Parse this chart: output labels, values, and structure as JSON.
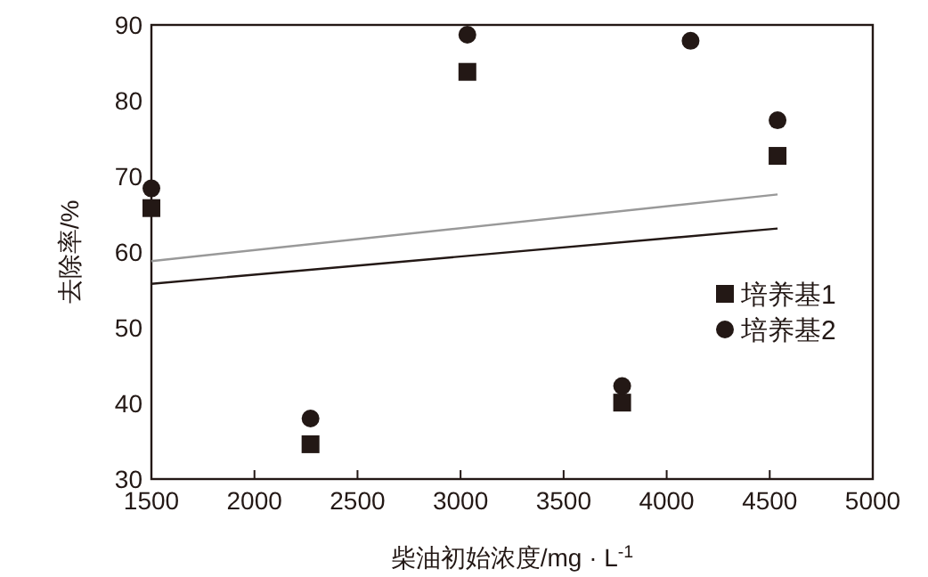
{
  "chart_data": {
    "type": "scatter",
    "xlabel": "柴油初始浓度/mg · L$^{-1}$",
    "ylabel": "去除率/%",
    "xlim": [
      1500,
      5000
    ],
    "xticks": [
      1500,
      2000,
      2500,
      3000,
      3500,
      4000,
      4500,
      5000
    ],
    "ylim": [
      30,
      90
    ],
    "yticks": [
      30,
      40,
      50,
      60,
      70,
      80,
      90
    ],
    "legend": "right",
    "series": [
      {
        "name": "培养基1",
        "color": "#231815",
        "marker": "square",
        "x": [
          1500,
          2272,
          3033,
          3784,
          4538
        ],
        "values": [
          65.8,
          34.6,
          83.8,
          40.1,
          72.7
        ]
      },
      {
        "name": "培养基2",
        "color": "#231815",
        "marker": "circle",
        "x": [
          1500,
          2272,
          3033,
          3784,
          4116,
          4538
        ],
        "values": [
          68.4,
          38.0,
          88.7,
          42.3,
          87.9,
          77.4
        ]
      },
      {
        "type": "line",
        "color": "#999999",
        "x": [
          1500,
          4538
        ],
        "values": [
          58.8,
          67.6
        ]
      },
      {
        "type": "line",
        "color": "#231815",
        "x": [
          1500,
          4538
        ],
        "values": [
          55.8,
          63.1
        ]
      }
    ]
  }
}
